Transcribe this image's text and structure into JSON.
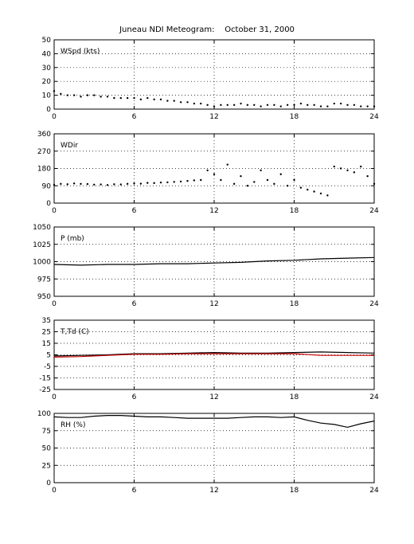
{
  "figure": {
    "title": "Juneau NDI Meteogram:    October 31, 2000"
  },
  "chart_data": [
    {
      "type": "scatter",
      "label": "WSpd (kts)",
      "xlim": [
        0,
        24
      ],
      "ylim": [
        0,
        50
      ],
      "x_ticks": [
        0,
        6,
        12,
        18,
        24
      ],
      "y_ticks": [
        0,
        10,
        20,
        30,
        40,
        50
      ],
      "grid": true,
      "series": [
        {
          "color": "#000000",
          "marker": "dot",
          "x": [
            0,
            0.5,
            1,
            1.5,
            2,
            2.5,
            3,
            3.5,
            4,
            4.5,
            5,
            5.5,
            6,
            6.5,
            7,
            7.5,
            8,
            8.5,
            9,
            9.5,
            10,
            10.5,
            11,
            11.5,
            12,
            12.5,
            13,
            13.5,
            14,
            14.5,
            15,
            15.5,
            16,
            16.5,
            17,
            17.5,
            18,
            18.5,
            19,
            19.5,
            20,
            20.5,
            21,
            21.5,
            22,
            22.5,
            23,
            23.5,
            24
          ],
          "y": [
            13,
            11,
            10,
            10,
            9,
            10,
            10,
            9,
            9,
            8,
            8,
            8,
            8,
            7,
            8,
            7,
            7,
            6,
            6,
            5,
            5,
            4,
            4,
            3,
            2,
            3,
            3,
            3,
            4,
            3,
            3,
            2,
            3,
            3,
            2,
            3,
            3,
            4,
            3,
            3,
            2,
            2,
            4,
            4,
            3,
            3,
            2,
            2,
            2
          ]
        }
      ]
    },
    {
      "type": "scatter",
      "label": "WDir",
      "xlim": [
        0,
        24
      ],
      "ylim": [
        0,
        360
      ],
      "x_ticks": [
        0,
        6,
        12,
        18,
        24
      ],
      "y_ticks": [
        0,
        90,
        180,
        270,
        360
      ],
      "grid": true,
      "series": [
        {
          "color": "#000000",
          "marker": "dot",
          "x": [
            0,
            0.5,
            1,
            1.5,
            2,
            2.5,
            3,
            3.5,
            4,
            4.5,
            5,
            5.5,
            6,
            6.5,
            7,
            7.5,
            8,
            8.5,
            9,
            9.5,
            10,
            10.5,
            11,
            11.5,
            12,
            12.5,
            13,
            13.5,
            14,
            14.5,
            15,
            15.5,
            16,
            16.5,
            17,
            17.5,
            18,
            18.5,
            19,
            19.5,
            20,
            20.5,
            21,
            21.5,
            22,
            22.5,
            23,
            23.5,
            24
          ],
          "y": [
            95,
            100,
            98,
            102,
            100,
            99,
            96,
            97,
            94,
            98,
            97,
            100,
            102,
            101,
            105,
            104,
            107,
            108,
            110,
            112,
            115,
            118,
            120,
            170,
            150,
            120,
            200,
            100,
            140,
            90,
            110,
            170,
            120,
            100,
            150,
            90,
            120,
            80,
            70,
            60,
            50,
            40,
            190,
            180,
            170,
            160,
            190,
            140,
            100
          ]
        }
      ]
    },
    {
      "type": "line",
      "label": "P (mb)",
      "xlim": [
        0,
        24
      ],
      "ylim": [
        950,
        1050
      ],
      "x_ticks": [
        0,
        6,
        12,
        18,
        24
      ],
      "y_ticks": [
        950,
        975,
        1000,
        1025,
        1050
      ],
      "grid": true,
      "series": [
        {
          "color": "#000000",
          "x": [
            0,
            2,
            4,
            6,
            8,
            10,
            12,
            14,
            16,
            18,
            20,
            22,
            24
          ],
          "y": [
            996,
            995,
            996,
            996,
            997,
            997,
            998,
            999,
            1001,
            1002,
            1004,
            1005,
            1006
          ]
        }
      ]
    },
    {
      "type": "line",
      "label": "T,Td (C)",
      "xlim": [
        0,
        24
      ],
      "ylim": [
        -25,
        35
      ],
      "x_ticks": [
        0,
        6,
        12,
        18,
        24
      ],
      "y_ticks": [
        -25,
        -15,
        -5,
        5,
        15,
        25,
        35
      ],
      "grid": true,
      "series": [
        {
          "color": "#000000",
          "x": [
            0,
            2,
            4,
            6,
            8,
            10,
            12,
            14,
            16,
            18,
            20,
            22,
            24
          ],
          "y": [
            4,
            4.5,
            5,
            6,
            6,
            6.5,
            7,
            6.5,
            6.5,
            7,
            7.5,
            7,
            6.5
          ]
        },
        {
          "color": "#cc0000",
          "x": [
            0,
            2,
            4,
            6,
            8,
            10,
            12,
            14,
            16,
            18,
            20,
            22,
            24
          ],
          "y": [
            3,
            3.5,
            4.5,
            5.5,
            5.5,
            6,
            6,
            6,
            6,
            6,
            4.5,
            4.5,
            4.5
          ]
        }
      ]
    },
    {
      "type": "line",
      "label": "RH (%)",
      "xlim": [
        0,
        24
      ],
      "ylim": [
        0,
        100
      ],
      "x_ticks": [
        0,
        6,
        12,
        18,
        24
      ],
      "y_ticks": [
        0,
        25,
        50,
        75,
        100
      ],
      "grid": true,
      "series": [
        {
          "color": "#000000",
          "x": [
            0,
            1,
            2,
            3,
            4,
            5,
            6,
            7,
            8,
            9,
            10,
            11,
            12,
            13,
            14,
            15,
            16,
            17,
            18,
            19,
            20,
            21,
            22,
            23,
            24
          ],
          "y": [
            95,
            94,
            94,
            96,
            97,
            97,
            96,
            95,
            95,
            94,
            93,
            93,
            93,
            93,
            94,
            95,
            95,
            94,
            95,
            90,
            86,
            84,
            80,
            85,
            89
          ]
        }
      ]
    }
  ]
}
